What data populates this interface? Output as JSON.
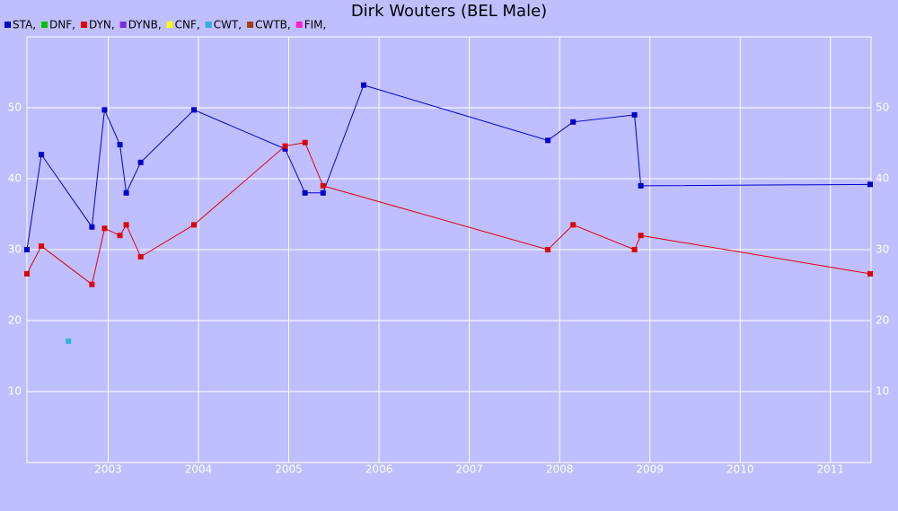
{
  "chart_data": {
    "type": "line",
    "title": "Dirk Wouters (BEL Male)",
    "xlim": [
      2002.1,
      2011.45
    ],
    "xticks": [
      2003,
      2004,
      2005,
      2006,
      2007,
      2008,
      2009,
      2010,
      2011
    ],
    "ylim": [
      0,
      60
    ],
    "yticks": [
      10,
      20,
      30,
      40,
      50
    ],
    "grid": true,
    "series": [
      {
        "name": "STA,",
        "color": "#0000cc",
        "x": [
          2002.1,
          2002.26,
          2002.82,
          2002.96,
          2003.13,
          2003.2,
          2003.36,
          2003.95,
          2004.96,
          2005.18,
          2005.38,
          2005.83,
          2007.87,
          2008.15,
          2008.83,
          2008.9,
          2011.44
        ],
        "values": [
          30,
          43.4,
          33.2,
          49.7,
          44.8,
          38,
          42.3,
          49.7,
          44.2,
          38,
          38,
          53.2,
          45.4,
          48,
          49,
          39,
          39.2
        ]
      },
      {
        "name": "DNF,",
        "color": "#00c000",
        "x": [],
        "values": []
      },
      {
        "name": "DYN,",
        "color": "#e00000",
        "x": [
          2002.1,
          2002.26,
          2002.82,
          2002.96,
          2003.13,
          2003.2,
          2003.36,
          2003.95,
          2004.96,
          2005.18,
          2005.38,
          2007.87,
          2008.15,
          2008.83,
          2008.9,
          2011.44
        ],
        "values": [
          26.6,
          30.5,
          25.1,
          33,
          32,
          33.5,
          29,
          33.5,
          44.6,
          45.1,
          39,
          30,
          33.5,
          30,
          32,
          26.6
        ]
      },
      {
        "name": "DYNB,",
        "color": "#7a2be0",
        "x": [],
        "values": []
      },
      {
        "name": "CNF,",
        "color": "#ffff00",
        "x": [],
        "values": []
      },
      {
        "name": "CWT,",
        "color": "#30b0e0",
        "x": [
          2002.56
        ],
        "values": [
          17.1
        ]
      },
      {
        "name": "CWTB,",
        "color": "#a0400f",
        "x": [],
        "values": []
      },
      {
        "name": "FIM,",
        "color": "#ff20d0",
        "x": [],
        "values": []
      }
    ]
  }
}
